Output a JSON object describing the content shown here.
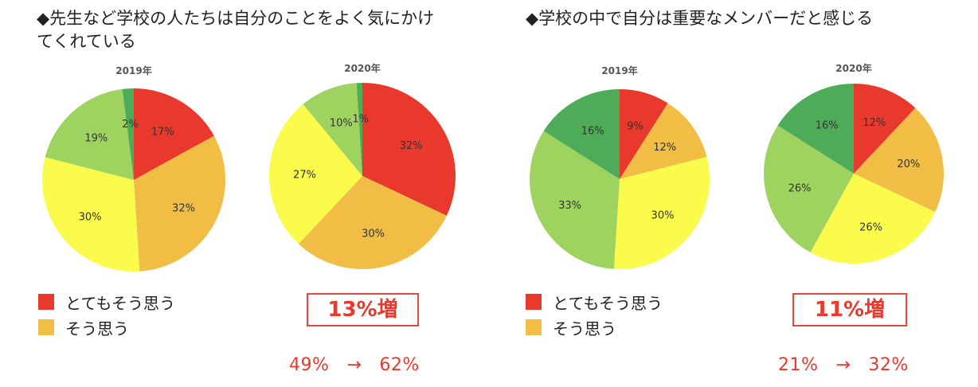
{
  "colors": {
    "very_much": "#e8392c",
    "somewhat": "#f2bd44",
    "cat3": "#fbfb4b",
    "cat4": "#9ed35f",
    "cat5": "#4eac58",
    "accent_red": "#e8392c"
  },
  "sections": [
    {
      "title": "◆先生など学校の人たちは自分のことをよく気にかけてくれている",
      "legend": [
        "とてもそう思う",
        "そう思う"
      ],
      "increase": "13%増",
      "comparison": {
        "from": "49%",
        "arrow": "→",
        "to": "62%"
      }
    },
    {
      "title": "◆学校の中で自分は重要なメンバーだと感じる",
      "legend": [
        "とてもそう思う",
        "そう思う"
      ],
      "increase": "11%増",
      "comparison": {
        "from": "21%",
        "arrow": "→",
        "to": "32%"
      }
    }
  ],
  "chart_data": [
    {
      "type": "pie",
      "title": "2019年",
      "values": [
        17,
        32,
        30,
        19,
        2
      ],
      "labels": [
        "17%",
        "32%",
        "30%",
        "19%",
        "2%"
      ]
    },
    {
      "type": "pie",
      "title": "2020年",
      "values": [
        32,
        30,
        27,
        10,
        1
      ],
      "labels": [
        "32%",
        "30%",
        "27%",
        "10%",
        "1%"
      ]
    },
    {
      "type": "pie",
      "title": "2019年",
      "values": [
        9,
        12,
        30,
        33,
        16
      ],
      "labels": [
        "9%",
        "12%",
        "30%",
        "33%",
        "16%"
      ]
    },
    {
      "type": "pie",
      "title": "2020年",
      "values": [
        12,
        20,
        26,
        26,
        16
      ],
      "labels": [
        "12%",
        "20%",
        "26%",
        "26%",
        "16%"
      ]
    }
  ]
}
